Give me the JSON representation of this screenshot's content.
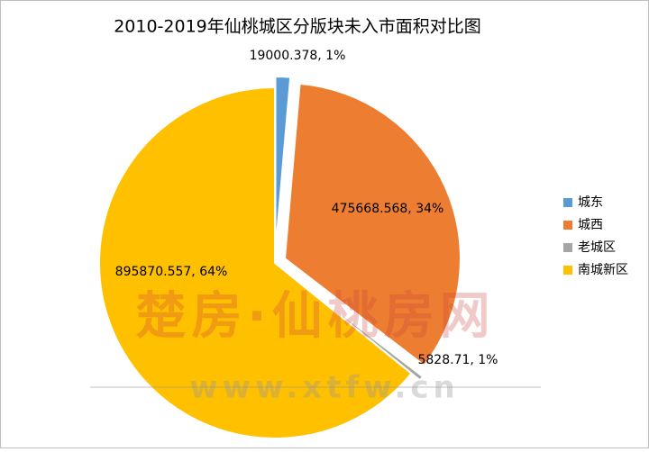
{
  "chart_data": {
    "type": "pie",
    "title": "2010-2019年仙桃城区分版块未入市面积对比图",
    "categories": [
      "城东",
      "城西",
      "老城区",
      "南城新区"
    ],
    "values": [
      19000.378,
      475668.568,
      5828.71,
      895870.557
    ],
    "value_labels": [
      "19000.378, 1%",
      "475668.568, 34%",
      "5828.71, 1%",
      "895870.557, 64%"
    ],
    "colors": [
      "#5b9bd5",
      "#ed7d31",
      "#a5a5a5",
      "#ffc000"
    ],
    "exploded": [
      true,
      true,
      true,
      false
    ],
    "legend": "right"
  },
  "watermark": {
    "brand": "楚房·仙桃房网",
    "url": "www.xtfw.cn"
  }
}
